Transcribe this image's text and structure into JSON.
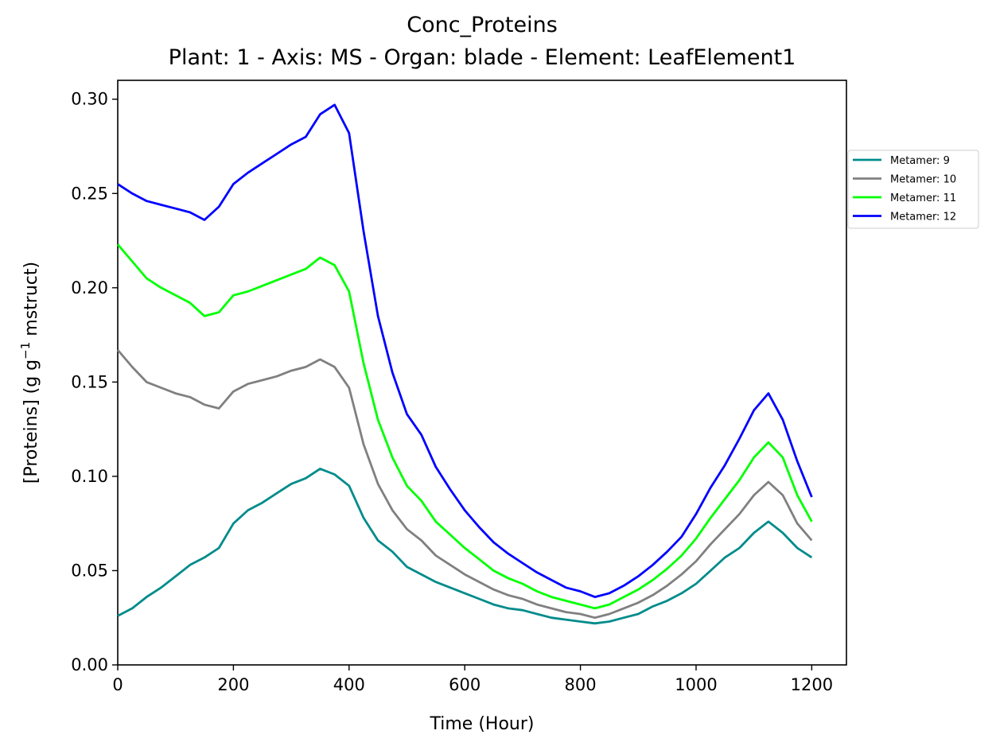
{
  "chart_data": {
    "type": "line",
    "title": "Conc_Proteins",
    "subtitle": "Plant: 1 - Axis: MS - Organ: blade - Element: LeafElement1",
    "xlabel": "Time (Hour)",
    "ylabel_main": "[Proteins] (g g",
    "ylabel_sup": "−1",
    "ylabel_tail": " mstruct)",
    "xlim": [
      0,
      1260
    ],
    "ylim": [
      0,
      0.31
    ],
    "xticks": [
      0,
      200,
      400,
      600,
      800,
      1000,
      1200
    ],
    "xtick_labels": [
      "0",
      "200",
      "400",
      "600",
      "800",
      "1000",
      "1200"
    ],
    "yticks": [
      0,
      0.05,
      0.1,
      0.15,
      0.2,
      0.25,
      0.3
    ],
    "ytick_labels": [
      "0.00",
      "0.05",
      "0.10",
      "0.15",
      "0.20",
      "0.25",
      "0.30"
    ],
    "grid": false,
    "legend_position": "outside-right",
    "x": [
      0,
      25,
      50,
      75,
      100,
      125,
      150,
      175,
      200,
      225,
      250,
      275,
      300,
      325,
      350,
      375,
      400,
      425,
      450,
      475,
      500,
      525,
      550,
      575,
      600,
      625,
      650,
      675,
      700,
      725,
      750,
      775,
      800,
      825,
      850,
      875,
      900,
      925,
      950,
      975,
      1000,
      1025,
      1050,
      1075,
      1100,
      1125,
      1150,
      1175,
      1200
    ],
    "series": [
      {
        "name": "Metamer: 9",
        "color": "#008b8b",
        "values": [
          0.026,
          0.03,
          0.036,
          0.041,
          0.047,
          0.053,
          0.057,
          0.062,
          0.075,
          0.082,
          0.086,
          0.091,
          0.096,
          0.099,
          0.104,
          0.101,
          0.095,
          0.078,
          0.066,
          0.06,
          0.052,
          0.048,
          0.044,
          0.041,
          0.038,
          0.035,
          0.032,
          0.03,
          0.029,
          0.027,
          0.025,
          0.024,
          0.023,
          0.022,
          0.023,
          0.025,
          0.027,
          0.031,
          0.034,
          0.038,
          0.043,
          0.05,
          0.057,
          0.062,
          0.07,
          0.076,
          0.07,
          0.062,
          0.057
        ]
      },
      {
        "name": "Metamer: 10",
        "color": "#808080",
        "values": [
          0.167,
          0.158,
          0.15,
          0.147,
          0.144,
          0.142,
          0.138,
          0.136,
          0.145,
          0.149,
          0.151,
          0.153,
          0.156,
          0.158,
          0.162,
          0.158,
          0.147,
          0.117,
          0.096,
          0.082,
          0.072,
          0.066,
          0.058,
          0.053,
          0.048,
          0.044,
          0.04,
          0.037,
          0.035,
          0.032,
          0.03,
          0.028,
          0.027,
          0.025,
          0.027,
          0.03,
          0.033,
          0.037,
          0.042,
          0.048,
          0.055,
          0.064,
          0.072,
          0.08,
          0.09,
          0.097,
          0.09,
          0.075,
          0.066
        ]
      },
      {
        "name": "Metamer: 11",
        "color": "#00ff00",
        "values": [
          0.223,
          0.214,
          0.205,
          0.2,
          0.196,
          0.192,
          0.185,
          0.187,
          0.196,
          0.198,
          0.201,
          0.204,
          0.207,
          0.21,
          0.216,
          0.212,
          0.198,
          0.16,
          0.13,
          0.11,
          0.095,
          0.087,
          0.076,
          0.069,
          0.062,
          0.056,
          0.05,
          0.046,
          0.043,
          0.039,
          0.036,
          0.034,
          0.032,
          0.03,
          0.032,
          0.036,
          0.04,
          0.045,
          0.051,
          0.058,
          0.067,
          0.078,
          0.088,
          0.098,
          0.11,
          0.118,
          0.11,
          0.09,
          0.076
        ]
      },
      {
        "name": "Metamer: 12",
        "color": "#0000ff",
        "values": [
          0.255,
          0.25,
          0.246,
          0.244,
          0.242,
          0.24,
          0.236,
          0.243,
          0.255,
          0.261,
          0.266,
          0.271,
          0.276,
          0.28,
          0.292,
          0.297,
          0.282,
          0.23,
          0.185,
          0.155,
          0.133,
          0.122,
          0.105,
          0.093,
          0.082,
          0.073,
          0.065,
          0.059,
          0.054,
          0.049,
          0.045,
          0.041,
          0.039,
          0.036,
          0.038,
          0.042,
          0.047,
          0.053,
          0.06,
          0.068,
          0.08,
          0.094,
          0.106,
          0.12,
          0.135,
          0.144,
          0.13,
          0.108,
          0.089
        ]
      }
    ]
  }
}
